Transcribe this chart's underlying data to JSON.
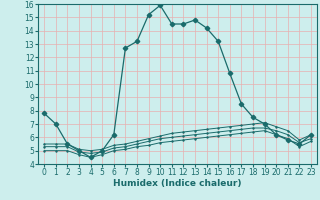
{
  "title": "",
  "xlabel": "Humidex (Indice chaleur)",
  "background_color": "#cdeeed",
  "grid_color": "#e8b0b0",
  "line_color": "#1a6b6b",
  "xlim": [
    -0.5,
    23.5
  ],
  "ylim": [
    4,
    16
  ],
  "xticks": [
    0,
    1,
    2,
    3,
    4,
    5,
    6,
    7,
    8,
    9,
    10,
    11,
    12,
    13,
    14,
    15,
    16,
    17,
    18,
    19,
    20,
    21,
    22,
    23
  ],
  "yticks": [
    4,
    5,
    6,
    7,
    8,
    9,
    10,
    11,
    12,
    13,
    14,
    15,
    16
  ],
  "main_x": [
    0,
    1,
    2,
    3,
    4,
    5,
    6,
    7,
    8,
    9,
    10,
    11,
    12,
    13,
    14,
    15,
    16,
    17,
    18,
    19,
    20,
    21,
    22,
    23
  ],
  "main_y": [
    7.8,
    7.0,
    5.5,
    5.0,
    4.5,
    5.0,
    6.2,
    12.7,
    13.2,
    15.2,
    15.9,
    14.5,
    14.5,
    14.8,
    14.2,
    13.2,
    10.8,
    8.5,
    7.5,
    7.0,
    6.2,
    5.8,
    5.5,
    6.2
  ],
  "flat1_x": [
    0,
    1,
    2,
    3,
    4,
    5,
    6,
    7,
    8,
    9,
    10,
    11,
    12,
    13,
    14,
    15,
    16,
    17,
    18,
    19,
    20,
    21,
    22,
    23
  ],
  "flat1_y": [
    5.5,
    5.5,
    5.5,
    5.1,
    5.0,
    5.1,
    5.4,
    5.5,
    5.7,
    5.9,
    6.1,
    6.3,
    6.4,
    6.5,
    6.6,
    6.7,
    6.8,
    6.9,
    7.0,
    7.1,
    6.8,
    6.5,
    5.8,
    6.2
  ],
  "flat2_x": [
    0,
    1,
    2,
    3,
    4,
    5,
    6,
    7,
    8,
    9,
    10,
    11,
    12,
    13,
    14,
    15,
    16,
    17,
    18,
    19,
    20,
    21,
    22,
    23
  ],
  "flat2_y": [
    5.3,
    5.3,
    5.3,
    4.9,
    4.8,
    4.9,
    5.2,
    5.3,
    5.5,
    5.7,
    5.9,
    6.0,
    6.1,
    6.2,
    6.3,
    6.4,
    6.5,
    6.6,
    6.7,
    6.7,
    6.5,
    6.2,
    5.6,
    5.9
  ],
  "flat3_x": [
    0,
    1,
    2,
    3,
    4,
    5,
    6,
    7,
    8,
    9,
    10,
    11,
    12,
    13,
    14,
    15,
    16,
    17,
    18,
    19,
    20,
    21,
    22,
    23
  ],
  "flat3_y": [
    5.0,
    5.0,
    5.0,
    4.7,
    4.5,
    4.7,
    5.0,
    5.1,
    5.3,
    5.4,
    5.6,
    5.7,
    5.8,
    5.9,
    6.0,
    6.1,
    6.2,
    6.3,
    6.4,
    6.5,
    6.2,
    5.9,
    5.3,
    5.7
  ],
  "tick_fontsize": 5.5,
  "xlabel_fontsize": 6.5
}
